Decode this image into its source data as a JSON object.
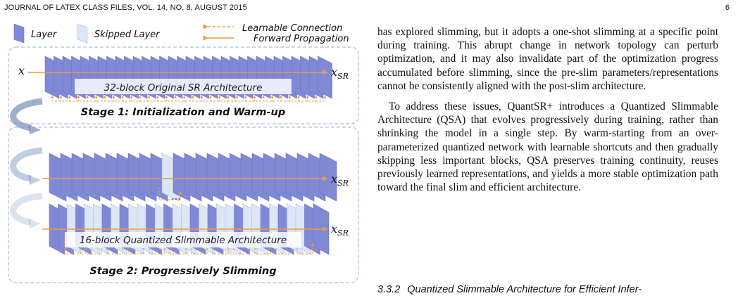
{
  "header": {
    "journal": "JOURNAL OF LATEX CLASS FILES, VOL. 14, NO. 8, AUGUST 2015",
    "page_number": "6"
  },
  "figure": {
    "legend": {
      "layer": "Layer",
      "skipped_layer": "Skipped Layer",
      "learnable_connection": "Learnable Connection",
      "forward_propagation": "Forward Propagation"
    },
    "input_label": "x",
    "output_label": "x",
    "output_subscript": "SR",
    "arch_label_1": "32-block Original SR Architecture",
    "stage1_title": "Stage 1: Initialization and Warm-up",
    "ellipsis": "...",
    "arch_label_2": "16-block Quantized Slimmable Architecture",
    "stage2_title": "Stage 2: Progressively Slimming"
  },
  "body": {
    "paragraph1": "has explored slimming, but it adopts a one-shot slimming at a specific point during training. This abrupt change in network topology can perturb optimization, and it may also invalidate part of the optimization progress accumulated before slimming, since the pre-slim parameters/representations cannot be consistently aligned with the post-slim architecture.",
    "paragraph2": "To address these issues, QuantSR+ introduces a Quantized Slimmable Architecture (QSA) that evolves progressively during training, rather than shrinking the model in a single step. By warm-starting from an over-parameterized quantized network with learnable shortcuts and then gradually skipping less important blocks, QSA preserves training continuity, reuses previously learned representations, and yields a more stable optimization path toward the final slim and efficient architecture."
  },
  "subsection": {
    "number": "3.3.2",
    "title": "Quantized Slimmable Architecture for Efficient Infer-"
  },
  "colors": {
    "layer": "#8089d6",
    "skipped_layer": "#dbe6f7",
    "learnable_connection": "#ee9a3c",
    "forward_propagation": "#ee9a3c",
    "stage_border": "#a7bfdc"
  }
}
